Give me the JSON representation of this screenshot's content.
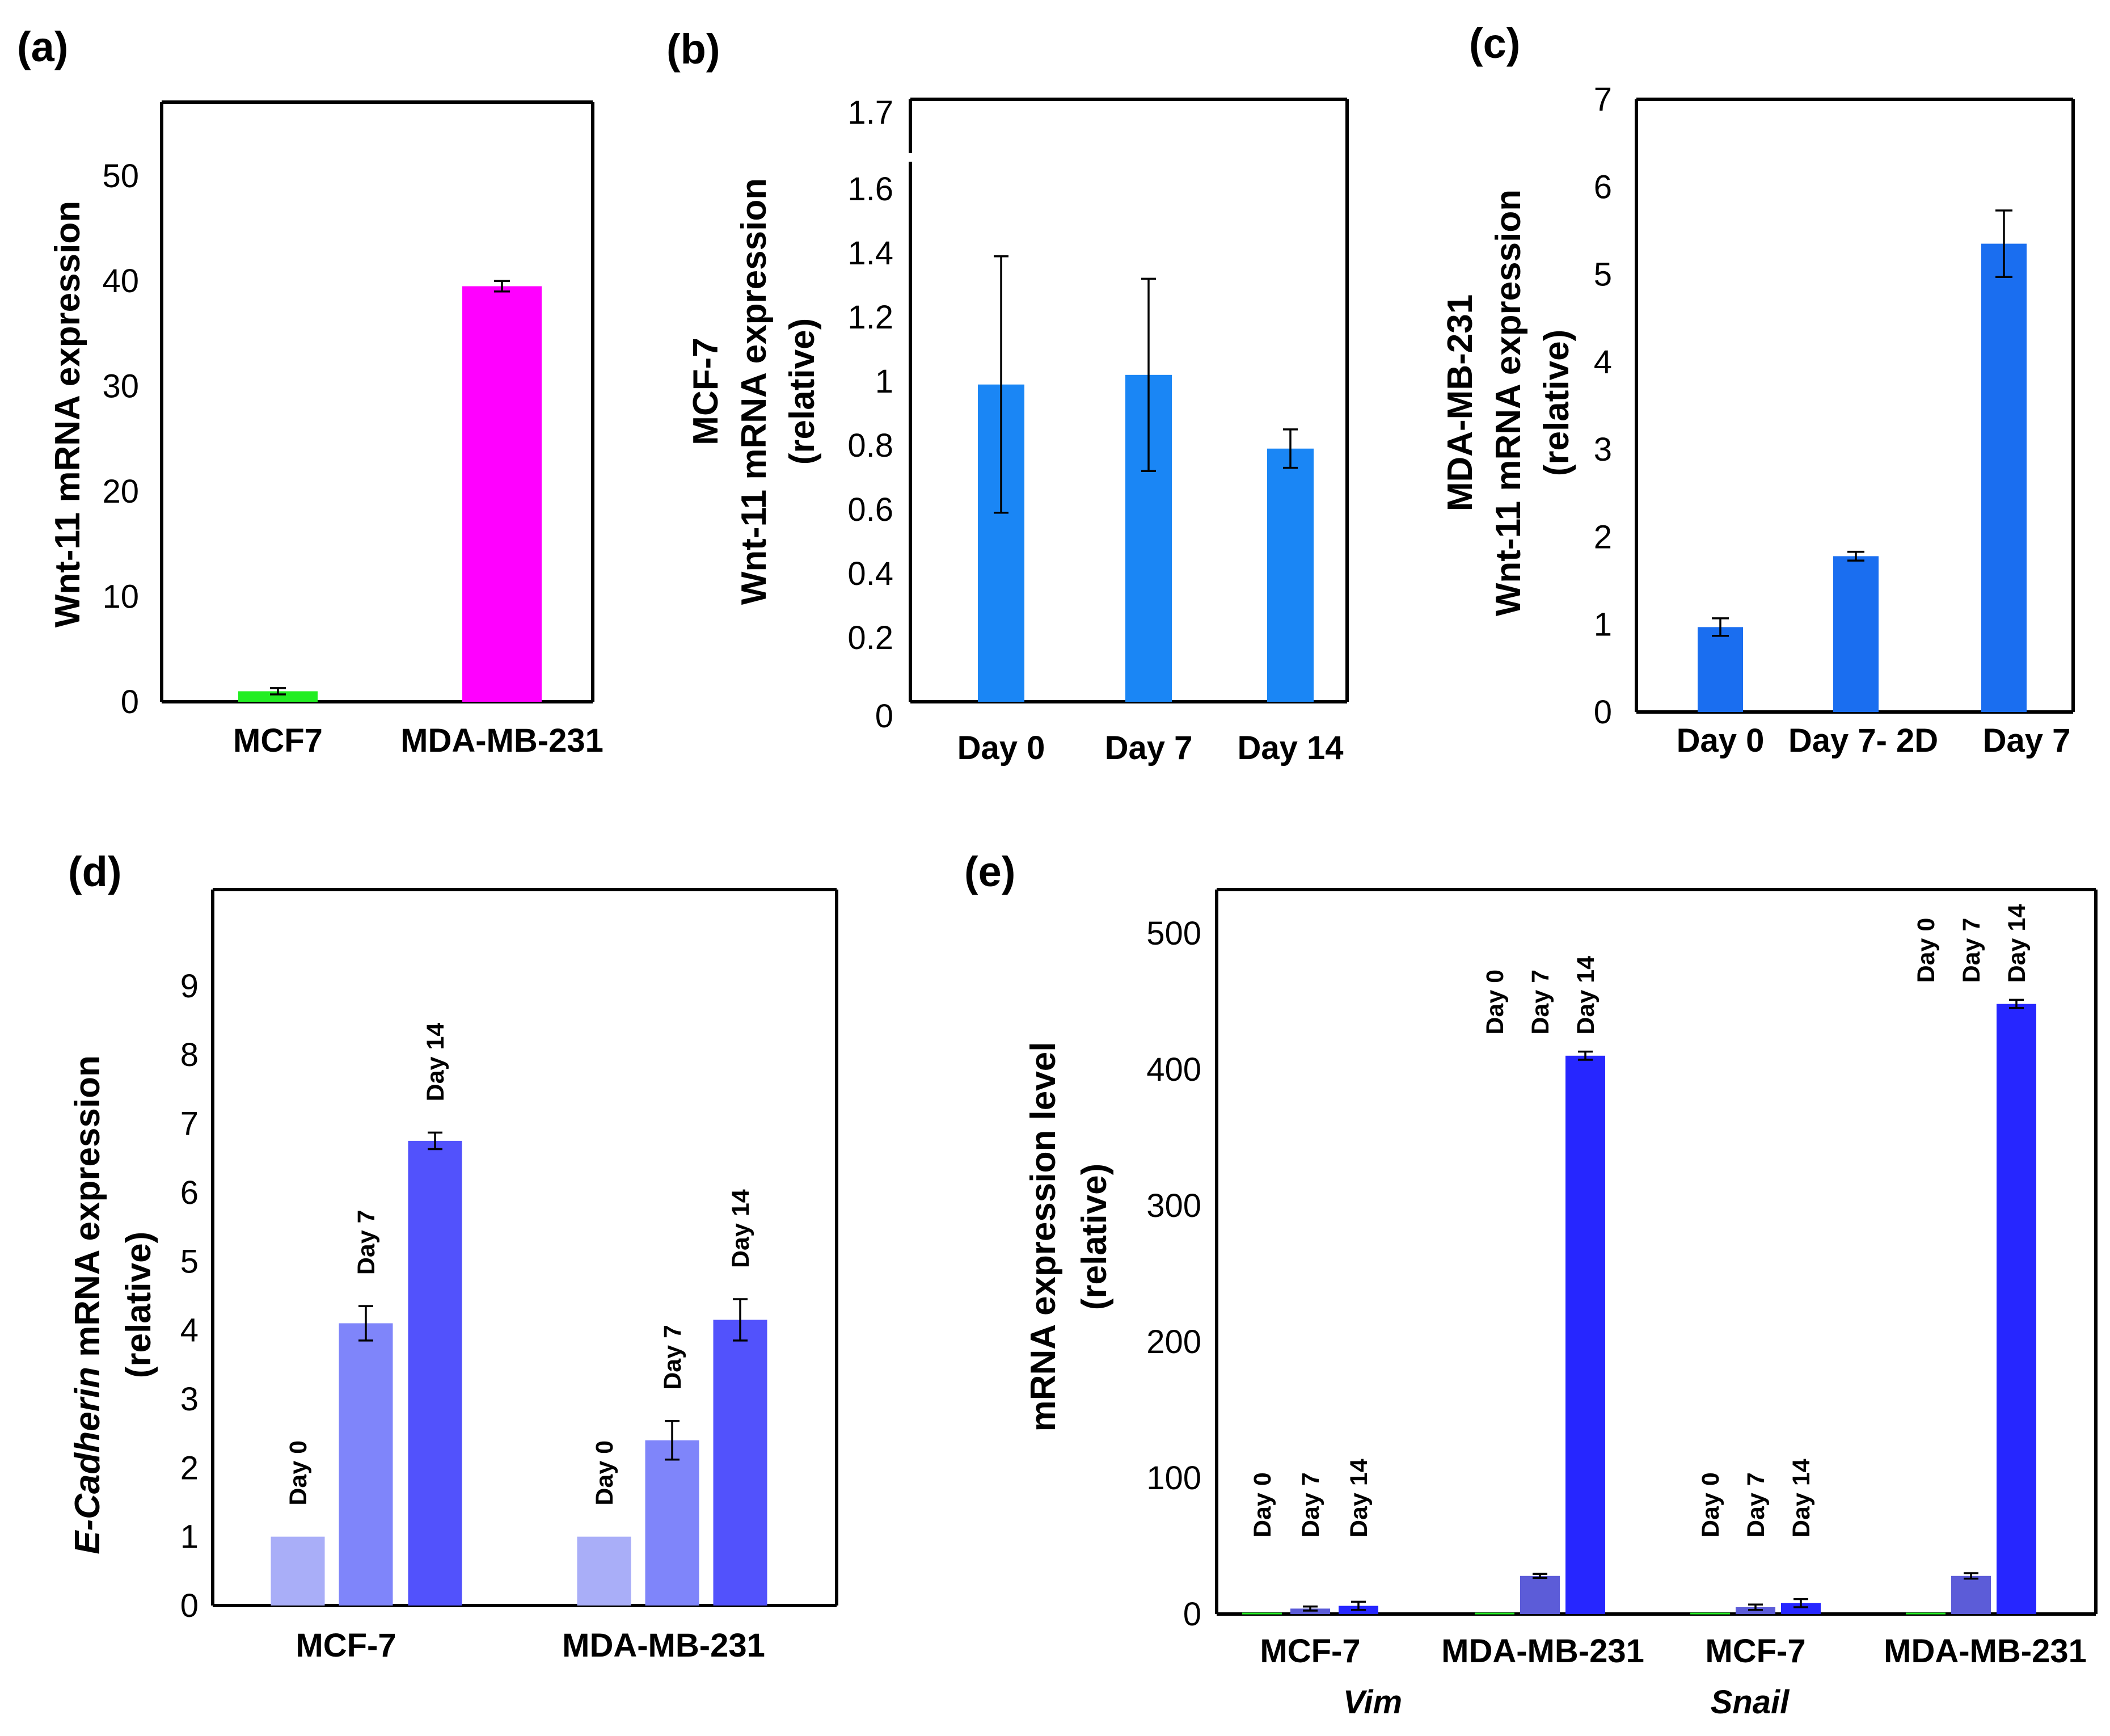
{
  "panel_labels": [
    "(a)",
    "(b)",
    "(c)",
    "(d)",
    "(e)"
  ],
  "chart_data": [
    {
      "panel": "(a)",
      "type": "bar",
      "ylabel": "Wnt-11 mRNA expression",
      "categories": [
        "MCF7",
        "MDA-MB-231"
      ],
      "values": [
        1,
        39.5
      ],
      "errors": [
        0.3,
        0.5
      ],
      "colors": [
        "#22ee22",
        "#ff00ff"
      ],
      "ylim": [
        0,
        57
      ],
      "yticks": [
        0,
        10,
        20,
        30,
        40,
        50
      ],
      "ytick_labels": [
        "0",
        "10",
        "20",
        "30",
        "40",
        "50"
      ]
    },
    {
      "panel": "(b)",
      "type": "bar",
      "ylabel_lines": [
        "MCF-7",
        "Wnt-11 mRNA expression",
        "(relative)"
      ],
      "categories": [
        "Day 0",
        "Day 7",
        "Day 14"
      ],
      "values": [
        0.99,
        1.02,
        0.79
      ],
      "errors": [
        0.4,
        0.3,
        0.06
      ],
      "colors": [
        "#1a86f5",
        "#1a86f5",
        "#1a86f5"
      ],
      "ylim": [
        0,
        1.88
      ],
      "yticks": [
        0,
        0.2,
        0.4,
        0.6,
        0.8,
        1,
        1.2,
        1.4,
        1.6,
        1.7
      ],
      "ytick_labels": [
        "0",
        "0.2",
        "0.4",
        "0.6",
        "0.8",
        "1",
        "1.2",
        "1.4",
        "1.6",
        "1.7"
      ]
    },
    {
      "panel": "(c)",
      "type": "bar",
      "ylabel_lines": [
        "MDA-MB-231",
        "Wnt-11 mRNA expression",
        "(relative)"
      ],
      "categories": [
        "Day 0",
        "Day 7- 2D",
        "Day 7"
      ],
      "values": [
        0.97,
        1.78,
        5.35
      ],
      "errors": [
        0.1,
        0.05,
        0.38
      ],
      "colors": [
        "#1a6ef0",
        "#1a6ef0",
        "#1a6ef0"
      ],
      "ylim": [
        0,
        7
      ],
      "yticks": [
        0,
        1,
        2,
        3,
        4,
        5,
        6,
        7
      ],
      "ytick_labels": [
        "0",
        "1",
        "2",
        "3",
        "4",
        "5",
        "6",
        "7"
      ]
    },
    {
      "panel": "(d)",
      "type": "bar",
      "ylabel_italic": "E-Cadherin",
      "ylabel_rest": " mRNA expression",
      "ylabel_line2": "(relative)",
      "categories": [
        "MCF-7",
        "MDA-MB-231"
      ],
      "bar_labels": [
        "Day 0",
        "Day 7",
        "Day 14"
      ],
      "series_values": [
        [
          1,
          4.1,
          6.75
        ],
        [
          1,
          2.4,
          4.15
        ]
      ],
      "series_errors": [
        [
          0,
          0.25,
          0.12
        ],
        [
          0,
          0.28,
          0.3
        ]
      ],
      "colors": [
        "#a9aef8",
        "#7f85fa",
        "#5252fc"
      ],
      "ylim": [
        0,
        10.4
      ],
      "yticks": [
        0,
        1,
        2,
        3,
        4,
        5,
        6,
        7,
        8,
        9
      ],
      "ytick_labels": [
        "0",
        "1",
        "2",
        "3",
        "4",
        "5",
        "6",
        "7",
        "8",
        "9"
      ]
    },
    {
      "panel": "(e)",
      "type": "bar",
      "ylabel_lines": [
        "mRNA expression level",
        "(relative)"
      ],
      "categories": [
        "MCF-7",
        "MDA-MB-231",
        "MCF-7",
        "MDA-MB-231"
      ],
      "groups": [
        "Vim",
        "Snail"
      ],
      "bar_labels": [
        "Day 0",
        "Day 7",
        "Day 14"
      ],
      "series_values": [
        [
          1,
          4,
          6
        ],
        [
          1,
          28,
          410
        ],
        [
          1,
          5,
          8
        ],
        [
          1,
          28,
          448
        ]
      ],
      "series_errors": [
        [
          0,
          1.5,
          3
        ],
        [
          0,
          1.5,
          3
        ],
        [
          0,
          2,
          3
        ],
        [
          0,
          2,
          3
        ]
      ],
      "colors": [
        "#22ee22",
        "#5c5cd8",
        "#2626ff"
      ],
      "ylim": [
        0,
        532
      ],
      "yticks": [
        0,
        100,
        200,
        300,
        400,
        500
      ],
      "ytick_labels": [
        "0",
        "100",
        "200",
        "300",
        "400",
        "500"
      ]
    }
  ]
}
